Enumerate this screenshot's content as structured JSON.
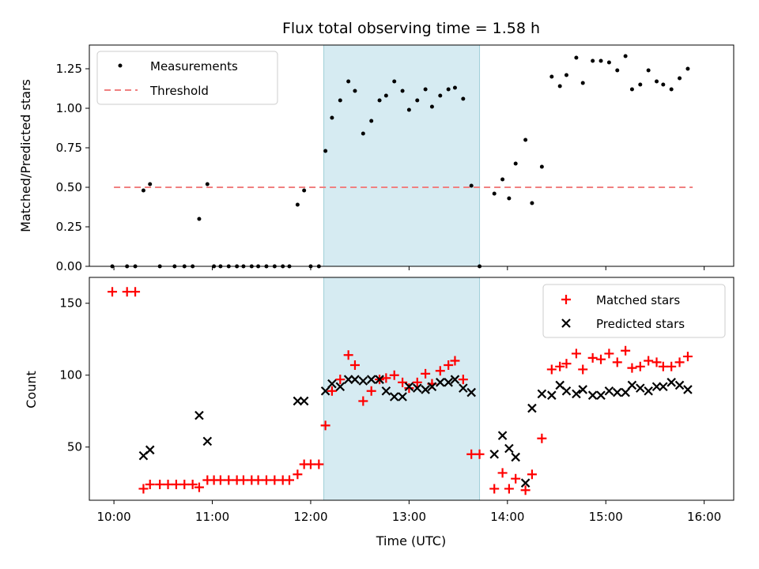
{
  "chart_data": {
    "title": "Flux total observing time = 1.58 h",
    "shaded_region": {
      "start": "12:08",
      "end": "13:43",
      "color": "#add8e6"
    },
    "top": {
      "type": "scatter",
      "ylabel": "Matched/Predicted stars",
      "ylim": [
        0,
        1.4
      ],
      "yticks": [
        "0.00",
        "0.25",
        "0.50",
        "0.75",
        "1.00",
        "1.25"
      ],
      "threshold": {
        "name": "Threshold",
        "value": 0.5,
        "x_range": [
          "10:00",
          "15:53"
        ],
        "color": "#f08080"
      },
      "series": [
        {
          "name": "Measurements",
          "color": "#000000",
          "points": [
            [
              "09:59",
              0
            ],
            [
              "10:08",
              0
            ],
            [
              "10:13",
              0
            ],
            [
              "10:18",
              0.48
            ],
            [
              "10:22",
              0.52
            ],
            [
              "10:28",
              0
            ],
            [
              "10:37",
              0
            ],
            [
              "10:43",
              0
            ],
            [
              "10:48",
              0
            ],
            [
              "10:52",
              0.3
            ],
            [
              "10:57",
              0.52
            ],
            [
              "11:01",
              0
            ],
            [
              "11:05",
              0
            ],
            [
              "11:10",
              0
            ],
            [
              "11:15",
              0
            ],
            [
              "11:19",
              0
            ],
            [
              "11:24",
              0
            ],
            [
              "11:28",
              0
            ],
            [
              "11:33",
              0
            ],
            [
              "11:38",
              0
            ],
            [
              "11:43",
              0
            ],
            [
              "11:47",
              0
            ],
            [
              "11:52",
              0.39
            ],
            [
              "11:56",
              0.48
            ],
            [
              "12:00",
              0
            ],
            [
              "12:05",
              0
            ],
            [
              "12:09",
              0.73
            ],
            [
              "12:13",
              0.94
            ],
            [
              "12:18",
              1.05
            ],
            [
              "12:23",
              1.17
            ],
            [
              "12:27",
              1.11
            ],
            [
              "12:32",
              0.84
            ],
            [
              "12:37",
              0.92
            ],
            [
              "12:42",
              1.05
            ],
            [
              "12:46",
              1.08
            ],
            [
              "12:51",
              1.17
            ],
            [
              "12:56",
              1.11
            ],
            [
              "13:00",
              0.99
            ],
            [
              "13:05",
              1.05
            ],
            [
              "13:10",
              1.12
            ],
            [
              "13:14",
              1.01
            ],
            [
              "13:19",
              1.08
            ],
            [
              "13:24",
              1.12
            ],
            [
              "13:28",
              1.13
            ],
            [
              "13:33",
              1.06
            ],
            [
              "13:38",
              0.51
            ],
            [
              "13:43",
              0
            ],
            [
              "13:52",
              0.46
            ],
            [
              "13:57",
              0.55
            ],
            [
              "14:01",
              0.43
            ],
            [
              "14:05",
              0.65
            ],
            [
              "14:11",
              0.8
            ],
            [
              "14:15",
              0.4
            ],
            [
              "14:21",
              0.63
            ],
            [
              "14:27",
              1.2
            ],
            [
              "14:32",
              1.14
            ],
            [
              "14:36",
              1.21
            ],
            [
              "14:42",
              1.32
            ],
            [
              "14:46",
              1.16
            ],
            [
              "14:52",
              1.3
            ],
            [
              "14:57",
              1.3
            ],
            [
              "15:02",
              1.29
            ],
            [
              "15:07",
              1.24
            ],
            [
              "15:12",
              1.33
            ],
            [
              "15:16",
              1.12
            ],
            [
              "15:21",
              1.15
            ],
            [
              "15:26",
              1.24
            ],
            [
              "15:31",
              1.17
            ],
            [
              "15:35",
              1.15
            ],
            [
              "15:40",
              1.12
            ],
            [
              "15:45",
              1.19
            ],
            [
              "15:50",
              1.25
            ]
          ]
        }
      ]
    },
    "bottom": {
      "type": "scatter",
      "xlabel": "Time (UTC)",
      "ylabel": "Count",
      "ylim": [
        13,
        168
      ],
      "yticks": [
        "50",
        "100",
        "150"
      ],
      "xticks": [
        "10:00",
        "11:00",
        "12:00",
        "13:00",
        "14:00",
        "15:00",
        "16:00"
      ],
      "xlim": [
        "09:45",
        "16:18"
      ],
      "series": [
        {
          "name": "Matched stars",
          "marker": "plus",
          "color": "#ff0000",
          "points": [
            [
              "09:59",
              158
            ],
            [
              "10:08",
              158
            ],
            [
              "10:13",
              158
            ],
            [
              "10:18",
              21
            ],
            [
              "10:22",
              24
            ],
            [
              "10:28",
              24
            ],
            [
              "10:33",
              24
            ],
            [
              "10:38",
              24
            ],
            [
              "10:43",
              24
            ],
            [
              "10:48",
              24
            ],
            [
              "10:52",
              22
            ],
            [
              "10:57",
              27
            ],
            [
              "11:01",
              27
            ],
            [
              "11:05",
              27
            ],
            [
              "11:10",
              27
            ],
            [
              "11:15",
              27
            ],
            [
              "11:19",
              27
            ],
            [
              "11:24",
              27
            ],
            [
              "11:28",
              27
            ],
            [
              "11:33",
              27
            ],
            [
              "11:38",
              27
            ],
            [
              "11:43",
              27
            ],
            [
              "11:47",
              27
            ],
            [
              "11:52",
              31
            ],
            [
              "11:56",
              38
            ],
            [
              "12:00",
              38
            ],
            [
              "12:05",
              38
            ],
            [
              "12:09",
              65
            ],
            [
              "12:13",
              89
            ],
            [
              "12:18",
              97
            ],
            [
              "12:23",
              114
            ],
            [
              "12:27",
              107
            ],
            [
              "12:32",
              82
            ],
            [
              "12:37",
              89
            ],
            [
              "12:42",
              97
            ],
            [
              "12:46",
              98
            ],
            [
              "12:51",
              100
            ],
            [
              "12:56",
              95
            ],
            [
              "13:00",
              91
            ],
            [
              "13:05",
              95
            ],
            [
              "13:10",
              101
            ],
            [
              "13:14",
              94
            ],
            [
              "13:19",
              103
            ],
            [
              "13:24",
              107
            ],
            [
              "13:28",
              110
            ],
            [
              "13:33",
              97
            ],
            [
              "13:38",
              45
            ],
            [
              "13:43",
              45
            ],
            [
              "13:52",
              21
            ],
            [
              "13:57",
              32
            ],
            [
              "14:01",
              21
            ],
            [
              "14:05",
              28
            ],
            [
              "14:11",
              20
            ],
            [
              "14:15",
              31
            ],
            [
              "14:21",
              56
            ],
            [
              "14:27",
              104
            ],
            [
              "14:32",
              106
            ],
            [
              "14:36",
              108
            ],
            [
              "14:42",
              115
            ],
            [
              "14:46",
              104
            ],
            [
              "14:52",
              112
            ],
            [
              "14:57",
              111
            ],
            [
              "15:02",
              115
            ],
            [
              "15:07",
              109
            ],
            [
              "15:12",
              117
            ],
            [
              "15:16",
              105
            ],
            [
              "15:21",
              106
            ],
            [
              "15:26",
              110
            ],
            [
              "15:31",
              109
            ],
            [
              "15:35",
              106
            ],
            [
              "15:40",
              106
            ],
            [
              "15:45",
              109
            ],
            [
              "15:50",
              113
            ]
          ]
        },
        {
          "name": "Predicted stars",
          "marker": "x",
          "color": "#000000",
          "points": [
            [
              "10:18",
              44
            ],
            [
              "10:22",
              48
            ],
            [
              "10:52",
              72
            ],
            [
              "10:57",
              54
            ],
            [
              "11:52",
              82
            ],
            [
              "11:56",
              82
            ],
            [
              "12:09",
              89
            ],
            [
              "12:13",
              94
            ],
            [
              "12:18",
              92
            ],
            [
              "12:23",
              97
            ],
            [
              "12:27",
              97
            ],
            [
              "12:32",
              96
            ],
            [
              "12:37",
              97
            ],
            [
              "12:42",
              97
            ],
            [
              "12:46",
              89
            ],
            [
              "12:51",
              85
            ],
            [
              "12:56",
              85
            ],
            [
              "13:00",
              92
            ],
            [
              "13:05",
              91
            ],
            [
              "13:10",
              90
            ],
            [
              "13:14",
              92
            ],
            [
              "13:19",
              95
            ],
            [
              "13:24",
              95
            ],
            [
              "13:28",
              97
            ],
            [
              "13:33",
              91
            ],
            [
              "13:38",
              88
            ],
            [
              "13:52",
              45
            ],
            [
              "13:57",
              58
            ],
            [
              "14:01",
              49
            ],
            [
              "14:05",
              43
            ],
            [
              "14:11",
              25
            ],
            [
              "14:15",
              77
            ],
            [
              "14:21",
              87
            ],
            [
              "14:27",
              86
            ],
            [
              "14:32",
              93
            ],
            [
              "14:36",
              89
            ],
            [
              "14:42",
              87
            ],
            [
              "14:46",
              90
            ],
            [
              "14:52",
              86
            ],
            [
              "14:57",
              86
            ],
            [
              "15:02",
              89
            ],
            [
              "15:07",
              88
            ],
            [
              "15:12",
              88
            ],
            [
              "15:16",
              93
            ],
            [
              "15:21",
              91
            ],
            [
              "15:26",
              89
            ],
            [
              "15:31",
              92
            ],
            [
              "15:35",
              92
            ],
            [
              "15:40",
              95
            ],
            [
              "15:45",
              93
            ],
            [
              "15:50",
              90
            ]
          ]
        }
      ]
    }
  }
}
